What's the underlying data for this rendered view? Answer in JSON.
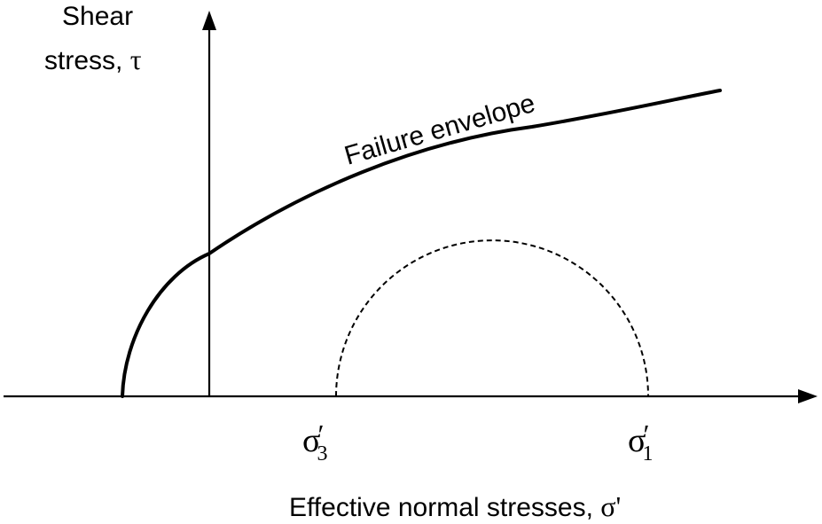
{
  "diagram": {
    "y_axis_label_line1": "Shear",
    "y_axis_label_line2_text": "stress, ",
    "y_axis_symbol": "τ",
    "curve_label": "Failure envelope",
    "sigma3": {
      "base": "σ",
      "prime": "′",
      "subscript": "3"
    },
    "sigma1": {
      "base": "σ",
      "prime": "′",
      "subscript": "1"
    },
    "x_axis_label_text": "Effective normal stresses, ",
    "x_axis_symbol": "σ'",
    "colors": {
      "line": "#000000",
      "background": "#ffffff"
    }
  }
}
